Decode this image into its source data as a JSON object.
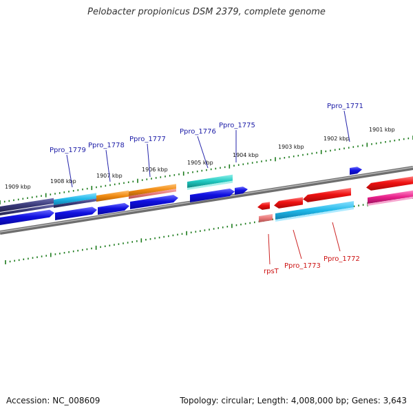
{
  "title": "Pelobacter propionicus DSM 2379, complete genome",
  "footer": {
    "accession": "Accession: NC_008609",
    "topology": "Topology: circular; Length: 4,008,000 bp; Genes: 3,643"
  },
  "kbp_labels": [
    "1909 kbp",
    "1908 kbp",
    "1907 kbp",
    "1906 kbp",
    "1905 kbp",
    "1904 kbp",
    "1903 kbp",
    "1902 kbp",
    "1901 kbp"
  ],
  "gene_labels_forward": [
    "Ppro_1779",
    "Ppro_1778",
    "Ppro_1777",
    "Ppro_1776",
    "Ppro_1775",
    "Ppro_1771"
  ],
  "gene_labels_reverse": [
    "rpsT",
    "Ppro_1773",
    "Ppro_1772"
  ],
  "colors": {
    "forward_gene": "#1010e0",
    "reverse_gene": "#ee1111",
    "ticks": "#1a7a1a",
    "backbone": "#8a8a8a",
    "navy_feature": "#3a3a7a",
    "cyan_feature": "#20b8e8",
    "orange_feature": "#f08a10",
    "teal_feature": "#20c8c0",
    "pink_feature": "#e8208a",
    "salmon_feature": "#e87878"
  }
}
